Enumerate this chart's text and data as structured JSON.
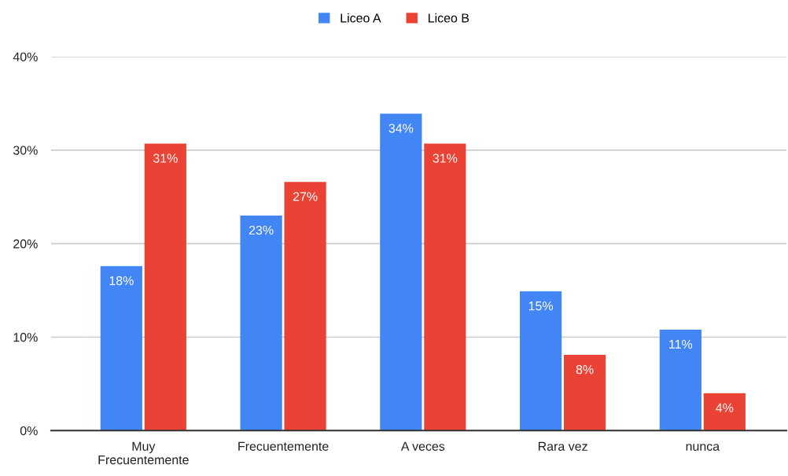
{
  "chart_data": {
    "type": "bar",
    "categories": [
      "Muy\nFrecuentemente",
      "Frecuentemente",
      "A veces",
      "Rara vez",
      "nunca"
    ],
    "series": [
      {
        "name": "Liceo A",
        "color": "#4285f4",
        "values": [
          17.6,
          23.0,
          33.9,
          14.9,
          10.8
        ],
        "value_labels": [
          "18%",
          "23%",
          "34%",
          "15%",
          "11%"
        ]
      },
      {
        "name": "Liceo B",
        "color": "#ea4335",
        "values": [
          30.7,
          26.6,
          30.7,
          8.1,
          4.0
        ],
        "value_labels": [
          "31%",
          "27%",
          "31%",
          "8%",
          "4%"
        ]
      }
    ],
    "ylim": [
      0,
      40
    ],
    "yticks": [
      {
        "value": 0,
        "label": "0%"
      },
      {
        "value": 10,
        "label": "10%"
      },
      {
        "value": 20,
        "label": "20%"
      },
      {
        "value": 30,
        "label": "30%"
      },
      {
        "value": 40,
        "label": "40%"
      }
    ],
    "grid": "y",
    "legend": "top"
  }
}
